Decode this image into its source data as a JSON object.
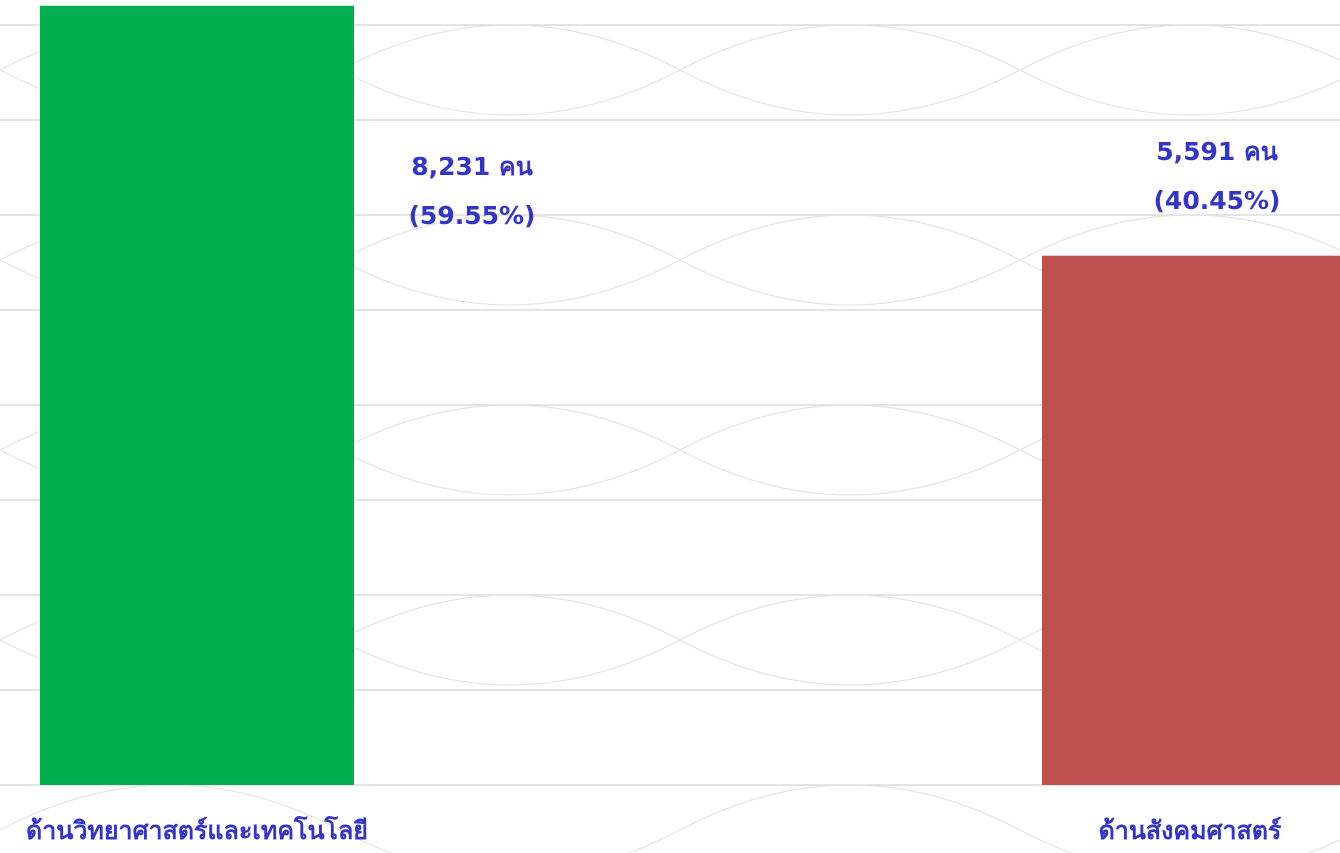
{
  "chart_data": {
    "type": "bar",
    "categories": [
      "ด้านวิทยาศาสตร์และเทคโนโลยี",
      "ด้านสังคมศาสตร์"
    ],
    "values": [
      8231,
      5591
    ],
    "value_labels": [
      "8,231 คน",
      "5,591 คน"
    ],
    "percents": [
      59.55,
      40.45
    ],
    "percent_labels": [
      "(59.55%)",
      "(40.45%)"
    ],
    "colors": [
      "#00ae4d",
      "#c0504d"
    ],
    "ylim": [
      0,
      8250
    ]
  }
}
